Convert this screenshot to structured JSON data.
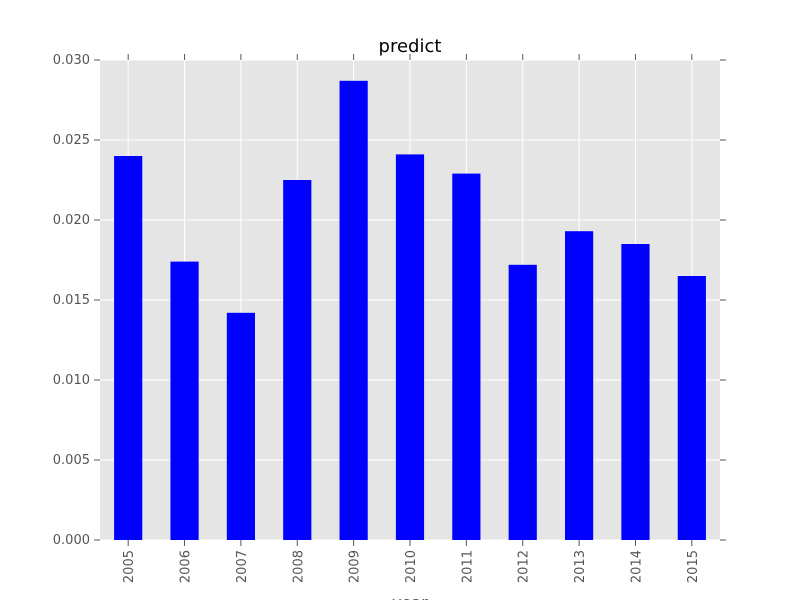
{
  "chart_data": {
    "type": "bar",
    "title": "predict",
    "xlabel": "year",
    "ylabel": "",
    "categories": [
      "2005",
      "2006",
      "2007",
      "2008",
      "2009",
      "2010",
      "2011",
      "2012",
      "2013",
      "2014",
      "2015"
    ],
    "values": [
      0.024,
      0.0174,
      0.0142,
      0.0225,
      0.0287,
      0.0241,
      0.0229,
      0.0172,
      0.0193,
      0.0185,
      0.0165
    ],
    "ylim": [
      0,
      0.03
    ],
    "yticks": [
      "0.000",
      "0.005",
      "0.010",
      "0.015",
      "0.020",
      "0.025",
      "0.030"
    ],
    "grid": true,
    "legend": false,
    "colors": {
      "bar": "#0000ff",
      "plot_background": "#e5e5e5",
      "grid": "#ffffff",
      "text": "#555555",
      "title": "#000000"
    }
  }
}
